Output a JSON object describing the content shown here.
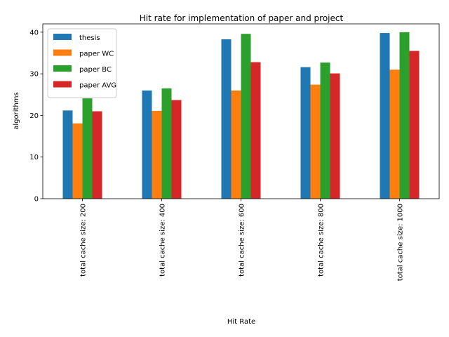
{
  "chart_data": {
    "type": "bar",
    "title": "Hit rate for implementation of paper and project",
    "xlabel": "Hit Rate",
    "ylabel": "algorithms",
    "categories": [
      "total cache size: 200",
      "total cache size: 400",
      "total cache size: 600",
      "total cache size: 800",
      "total cache size: 1000"
    ],
    "ylim": [
      0,
      42
    ],
    "yticks": [
      0,
      10,
      20,
      30,
      40
    ],
    "grid": false,
    "legend_position": "top-left",
    "series": [
      {
        "name": "thesis",
        "color": "#1f77b4",
        "values": [
          21.2,
          26.0,
          38.3,
          31.6,
          39.8
        ]
      },
      {
        "name": "paper WC",
        "color": "#ff7f0e",
        "values": [
          18.1,
          21.1,
          26.0,
          27.4,
          31.0
        ]
      },
      {
        "name": "paper BC",
        "color": "#2ca02c",
        "values": [
          24.1,
          26.5,
          39.6,
          32.7,
          40.0
        ]
      },
      {
        "name": "paper AVG",
        "color": "#d62728",
        "values": [
          21.0,
          23.7,
          32.8,
          30.1,
          35.5
        ]
      }
    ]
  }
}
